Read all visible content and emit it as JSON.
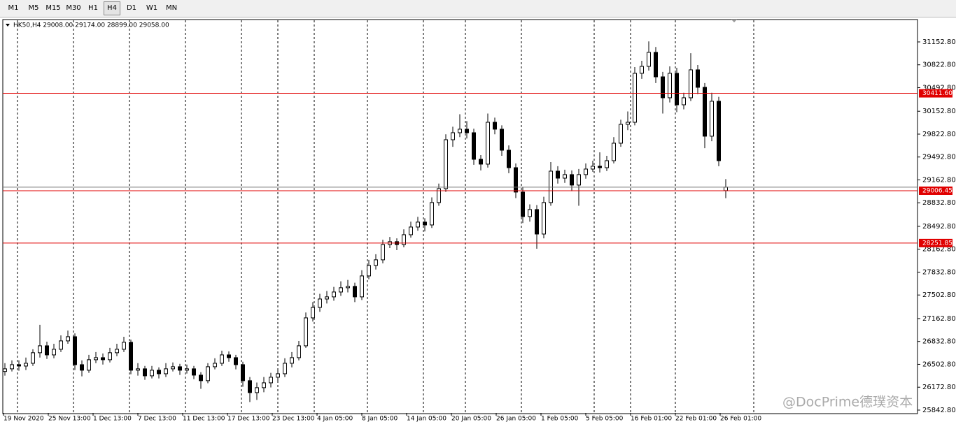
{
  "toolbar": {
    "timeframes": [
      "M1",
      "M5",
      "M15",
      "M30",
      "H1",
      "H4",
      "D1",
      "W1",
      "MN"
    ],
    "selected": "H4"
  },
  "chart_data": {
    "type": "candlestick",
    "info": "HK50,H4  29008.00 29174.00 28899.00 29058.00",
    "watermark": "@DocPrime德璞资本",
    "up_color": "#ffffff",
    "down_color": "#000000",
    "outline_color": "#000000",
    "x_labels": [
      "19 Nov 2020",
      "25 Nov 13:00",
      "1 Dec 13:00",
      "7 Dec 13:00",
      "11 Dec 13:00",
      "17 Dec 13:00",
      "23 Dec 13:00",
      "4 Jan 05:00",
      "8 Jan 05:00",
      "14 Jan 05:00",
      "20 Jan 05:00",
      "26 Jan 05:00",
      "1 Feb 05:00",
      "5 Feb 05:00",
      "16 Feb 01:00",
      "22 Feb 01:00",
      "26 Feb 01:00"
    ],
    "ylim": [
      25802,
      31465
    ],
    "yticks": [
      {
        "value": 31152.8,
        "label": "31152.80"
      },
      {
        "value": 30822.8,
        "label": "30822.80"
      },
      {
        "value": 30492.8,
        "label": "30492.80"
      },
      {
        "value": 30152.8,
        "label": "30152.80"
      },
      {
        "value": 29822.8,
        "label": "29822.80"
      },
      {
        "value": 29492.8,
        "label": "29492.80"
      },
      {
        "value": 29162.8,
        "label": "29162.80"
      },
      {
        "value": 28832.8,
        "label": "28832.80"
      },
      {
        "value": 28492.8,
        "label": "28492.80"
      },
      {
        "value": 28162.8,
        "label": "28162.80"
      },
      {
        "value": 27832.8,
        "label": "27832.80"
      },
      {
        "value": 27502.8,
        "label": "27502.80"
      },
      {
        "value": 27162.8,
        "label": "27162.80"
      },
      {
        "value": 26832.8,
        "label": "26832.80"
      },
      {
        "value": 26502.8,
        "label": "26502.80"
      },
      {
        "value": 26172.8,
        "label": "26172.80"
      },
      {
        "value": 25842.8,
        "label": "25842.80"
      }
    ],
    "levels": [
      {
        "value": 30411.6,
        "label": "30411.60"
      },
      {
        "value": 29006.45,
        "label": "29006.45"
      },
      {
        "value": 28251.85,
        "label": "28251.85"
      }
    ],
    "level_color": "#e00000",
    "candles": [
      [
        26400,
        26520,
        26340,
        26438
      ],
      [
        26438,
        26560,
        26400,
        26498
      ],
      [
        26498,
        26560,
        26410,
        26478
      ],
      [
        26478,
        26600,
        26420,
        26518
      ],
      [
        26518,
        26720,
        26480,
        26670
      ],
      [
        26670,
        27073,
        26600,
        26770
      ],
      [
        26770,
        26830,
        26580,
        26639
      ],
      [
        26639,
        26800,
        26590,
        26720
      ],
      [
        26720,
        26920,
        26680,
        26841
      ],
      [
        26841,
        26990,
        26800,
        26901
      ],
      [
        26901,
        26950,
        26420,
        26498
      ],
      [
        26498,
        26560,
        26330,
        26418
      ],
      [
        26418,
        26640,
        26380,
        26569
      ],
      [
        26569,
        26680,
        26520,
        26599
      ],
      [
        26599,
        26660,
        26500,
        26569
      ],
      [
        26569,
        26740,
        26530,
        26670
      ],
      [
        26670,
        26800,
        26620,
        26720
      ],
      [
        26720,
        26900,
        26680,
        26821
      ],
      [
        26821,
        26860,
        26360,
        26418
      ],
      [
        26418,
        26520,
        26340,
        26438
      ],
      [
        26438,
        26480,
        26280,
        26337
      ],
      [
        26337,
        26480,
        26300,
        26418
      ],
      [
        26418,
        26460,
        26300,
        26367
      ],
      [
        26367,
        26520,
        26320,
        26438
      ],
      [
        26438,
        26530,
        26400,
        26468
      ],
      [
        26468,
        26510,
        26350,
        26418
      ],
      [
        26418,
        26500,
        26370,
        26438
      ],
      [
        26438,
        26480,
        26290,
        26347
      ],
      [
        26347,
        26390,
        26150,
        26267
      ],
      [
        26267,
        26520,
        26230,
        26468
      ],
      [
        26468,
        26590,
        26430,
        26518
      ],
      [
        26518,
        26700,
        26480,
        26639
      ],
      [
        26639,
        26690,
        26540,
        26599
      ],
      [
        26599,
        26640,
        26430,
        26498
      ],
      [
        26498,
        26540,
        26180,
        26267
      ],
      [
        26267,
        26320,
        25960,
        26095
      ],
      [
        26095,
        26240,
        25990,
        26166
      ],
      [
        26166,
        26320,
        26100,
        26236
      ],
      [
        26236,
        26380,
        26170,
        26317
      ],
      [
        26317,
        26440,
        26260,
        26367
      ],
      [
        26367,
        26590,
        26320,
        26518
      ],
      [
        26518,
        26680,
        26460,
        26599
      ],
      [
        26599,
        26840,
        26560,
        26770
      ],
      [
        26770,
        27250,
        26740,
        27173
      ],
      [
        27173,
        27400,
        27120,
        27324
      ],
      [
        27324,
        27520,
        27260,
        27445
      ],
      [
        27445,
        27560,
        27380,
        27476
      ],
      [
        27476,
        27620,
        27420,
        27546
      ],
      [
        27546,
        27700,
        27490,
        27607
      ],
      [
        27607,
        27720,
        27540,
        27627
      ],
      [
        27627,
        27680,
        27400,
        27476
      ],
      [
        27476,
        27860,
        27430,
        27778
      ],
      [
        27778,
        28010,
        27730,
        27929
      ],
      [
        27929,
        28090,
        27870,
        28010
      ],
      [
        28010,
        28300,
        27960,
        28231
      ],
      [
        28231,
        28340,
        28180,
        28272
      ],
      [
        28272,
        28320,
        28150,
        28231
      ],
      [
        28231,
        28450,
        28190,
        28372
      ],
      [
        28372,
        28560,
        28330,
        28483
      ],
      [
        28483,
        28630,
        28430,
        28554
      ],
      [
        28554,
        28610,
        28420,
        28513
      ],
      [
        28513,
        28910,
        28470,
        28836
      ],
      [
        28836,
        29110,
        28790,
        29037
      ],
      [
        29037,
        29820,
        28990,
        29742
      ],
      [
        29742,
        29930,
        29640,
        29843
      ],
      [
        29843,
        30110,
        29780,
        29894
      ],
      [
        29894,
        30010,
        29760,
        29843
      ],
      [
        29843,
        29900,
        29380,
        29460
      ],
      [
        29460,
        29520,
        29300,
        29390
      ],
      [
        29390,
        30120,
        29340,
        29994
      ],
      [
        29994,
        30060,
        29820,
        29894
      ],
      [
        29894,
        29950,
        29510,
        29591
      ],
      [
        29591,
        29660,
        29260,
        29339
      ],
      [
        29339,
        29400,
        28900,
        28987
      ],
      [
        28987,
        29060,
        28540,
        28634
      ],
      [
        28634,
        28810,
        28560,
        28735
      ],
      [
        28735,
        28800,
        28170,
        28382
      ],
      [
        28382,
        28920,
        28320,
        28836
      ],
      [
        28836,
        29420,
        28790,
        29289
      ],
      [
        29289,
        29360,
        29110,
        29188
      ],
      [
        29188,
        29310,
        29120,
        29239
      ],
      [
        29239,
        29300,
        29000,
        29088
      ],
      [
        29088,
        29320,
        28790,
        29239
      ],
      [
        29239,
        29400,
        29180,
        29319
      ],
      [
        29319,
        29440,
        29280,
        29360
      ],
      [
        29360,
        29560,
        29270,
        29339
      ],
      [
        29339,
        29510,
        29290,
        29440
      ],
      [
        29440,
        29780,
        29400,
        29692
      ],
      [
        29692,
        30030,
        29640,
        29964
      ],
      [
        29964,
        30150,
        29880,
        29994
      ],
      [
        29994,
        30790,
        29950,
        30700
      ],
      [
        30700,
        30880,
        30620,
        30800
      ],
      [
        30800,
        31160,
        30740,
        31002
      ],
      [
        31002,
        31080,
        30560,
        30649
      ],
      [
        30649,
        30720,
        30120,
        30347
      ],
      [
        30347,
        30800,
        30280,
        30700
      ],
      [
        30700,
        30780,
        30140,
        30246
      ],
      [
        30246,
        30420,
        30180,
        30347
      ],
      [
        30347,
        30990,
        30300,
        30750
      ],
      [
        30750,
        30820,
        30400,
        30498
      ],
      [
        30498,
        30560,
        29620,
        29793
      ],
      [
        29793,
        30420,
        29720,
        30297
      ],
      [
        30297,
        30360,
        29360,
        29440
      ],
      [
        29008,
        29174,
        28899,
        29058
      ]
    ]
  }
}
